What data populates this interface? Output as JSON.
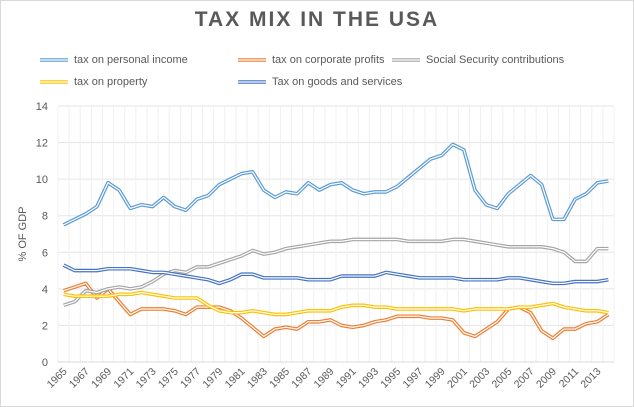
{
  "chart_data": {
    "type": "line",
    "title": "TAX MIX IN THE USA",
    "xlabel": "",
    "ylabel": "% OF GDP",
    "ylim": [
      0,
      14
    ],
    "yticks": [
      0,
      2,
      4,
      6,
      8,
      10,
      12,
      14
    ],
    "grid": true,
    "legend_placement": "top",
    "x": [
      1965,
      1966,
      1967,
      1968,
      1969,
      1970,
      1971,
      1972,
      1973,
      1974,
      1975,
      1976,
      1977,
      1978,
      1979,
      1980,
      1981,
      1982,
      1983,
      1984,
      1985,
      1986,
      1987,
      1988,
      1989,
      1990,
      1991,
      1992,
      1993,
      1994,
      1995,
      1996,
      1997,
      1998,
      1999,
      2000,
      2001,
      2002,
      2003,
      2004,
      2005,
      2006,
      2007,
      2008,
      2009,
      2010,
      2011,
      2012,
      2013,
      2014
    ],
    "xtick_labels": [
      "1965",
      "1967",
      "1969",
      "1971",
      "1973",
      "1975",
      "1977",
      "1979",
      "1981",
      "1983",
      "1985",
      "1987",
      "1989",
      "1991",
      "1993",
      "1995",
      "1997",
      "1999",
      "2001",
      "2003",
      "2005",
      "2007",
      "2009",
      "2011",
      "2013"
    ],
    "series": [
      {
        "name": "tax on personal income",
        "color": "#5B9BD5",
        "values": [
          7.5,
          7.8,
          8.1,
          8.5,
          9.8,
          9.4,
          8.4,
          8.6,
          8.5,
          9.0,
          8.5,
          8.3,
          8.9,
          9.1,
          9.7,
          10.0,
          10.3,
          10.4,
          9.4,
          9.0,
          9.3,
          9.2,
          9.8,
          9.4,
          9.7,
          9.8,
          9.4,
          9.2,
          9.3,
          9.3,
          9.6,
          10.1,
          10.6,
          11.1,
          11.3,
          11.9,
          11.6,
          9.4,
          8.6,
          8.4,
          9.2,
          9.7,
          10.2,
          9.7,
          7.8,
          7.8,
          8.9,
          9.2,
          9.8,
          9.9
        ]
      },
      {
        "name": "tax on corporate profits",
        "color": "#ED7D31",
        "values": [
          3.9,
          4.1,
          4.3,
          3.5,
          4.0,
          3.3,
          2.6,
          2.9,
          2.9,
          2.9,
          2.8,
          2.6,
          3.0,
          3.0,
          3.0,
          2.8,
          2.4,
          1.9,
          1.4,
          1.8,
          1.9,
          1.8,
          2.2,
          2.2,
          2.3,
          2.0,
          1.9,
          2.0,
          2.2,
          2.3,
          2.5,
          2.5,
          2.5,
          2.4,
          2.4,
          2.3,
          1.6,
          1.4,
          1.8,
          2.2,
          2.9,
          3.0,
          2.7,
          1.7,
          1.3,
          1.8,
          1.8,
          2.1,
          2.2,
          2.6
        ]
      },
      {
        "name": "Social Security contributions",
        "color": "#A5A5A5",
        "values": [
          3.1,
          3.3,
          3.9,
          3.8,
          4.0,
          4.1,
          4.0,
          4.1,
          4.4,
          4.8,
          5.0,
          4.9,
          5.2,
          5.2,
          5.4,
          5.6,
          5.8,
          6.1,
          5.9,
          6.0,
          6.2,
          6.3,
          6.4,
          6.5,
          6.6,
          6.6,
          6.7,
          6.7,
          6.7,
          6.7,
          6.7,
          6.6,
          6.6,
          6.6,
          6.6,
          6.7,
          6.7,
          6.6,
          6.5,
          6.4,
          6.3,
          6.3,
          6.3,
          6.3,
          6.2,
          6.0,
          5.5,
          5.5,
          6.2,
          6.2
        ]
      },
      {
        "name": "tax on property",
        "color": "#FFC000",
        "values": [
          3.7,
          3.6,
          3.6,
          3.6,
          3.6,
          3.7,
          3.7,
          3.8,
          3.7,
          3.6,
          3.5,
          3.5,
          3.5,
          3.1,
          2.8,
          2.7,
          2.7,
          2.8,
          2.7,
          2.6,
          2.6,
          2.7,
          2.8,
          2.8,
          2.8,
          3.0,
          3.1,
          3.1,
          3.0,
          3.0,
          2.9,
          2.9,
          2.9,
          2.9,
          2.9,
          2.9,
          2.8,
          2.9,
          2.9,
          2.9,
          2.9,
          3.0,
          3.0,
          3.1,
          3.2,
          3.0,
          2.9,
          2.8,
          2.8,
          2.7
        ]
      },
      {
        "name": "Tax on goods and services",
        "color": "#4472C4",
        "values": [
          5.3,
          5.0,
          5.0,
          5.0,
          5.1,
          5.1,
          5.1,
          5.0,
          4.9,
          4.9,
          4.8,
          4.7,
          4.6,
          4.5,
          4.3,
          4.5,
          4.8,
          4.8,
          4.6,
          4.6,
          4.6,
          4.6,
          4.5,
          4.5,
          4.5,
          4.7,
          4.7,
          4.7,
          4.7,
          4.9,
          4.8,
          4.7,
          4.6,
          4.6,
          4.6,
          4.6,
          4.5,
          4.5,
          4.5,
          4.5,
          4.6,
          4.6,
          4.5,
          4.4,
          4.3,
          4.3,
          4.4,
          4.4,
          4.4,
          4.5
        ]
      }
    ]
  }
}
